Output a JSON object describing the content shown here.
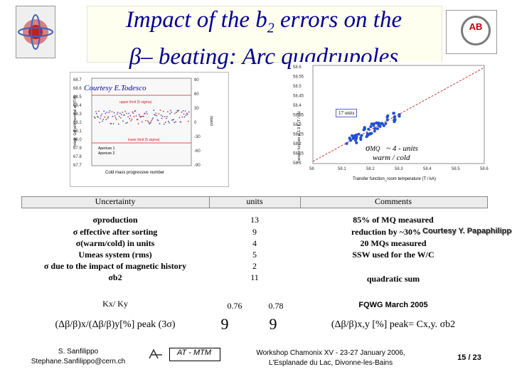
{
  "title": {
    "line1_prefix": "Impact of the b",
    "line1_sub": "2",
    "line1_suffix": " errors on the",
    "line2": "β– beating: Arc quadrupoles"
  },
  "left_chart": {
    "courtesy": "Courtesy E.Todesco",
    "y_ticks_left": [
      "68.7",
      "68.6",
      "68.5",
      "68.4",
      "68.3",
      "68.2",
      "68.1",
      "68.0",
      "67.9",
      "67.8",
      "67.7"
    ],
    "y_ticks_right": [
      "90",
      "60",
      "30",
      "0",
      "-30",
      "-60",
      "-90"
    ],
    "ylabel_left": "Integr. Gdl with nominal at I(T/A)",
    "ylabel_right": "(units)",
    "xlabel": "Cold mass progressive number",
    "upper_limit": "upper limit (5 sigma)",
    "lower_limit": "lower limit (5 sigma)",
    "legend": [
      "Aperture 1",
      "Aperture 2"
    ]
  },
  "right_chart": {
    "y_ticks": [
      "58.6",
      "58.55",
      "58.5",
      "58.45",
      "58.4",
      "58.35",
      "58.3",
      "58.25",
      "58.2",
      "58.15",
      "58.1"
    ],
    "x_ticks": [
      "58",
      "58.1",
      "58.2",
      "58.3",
      "58.4",
      "58.5",
      "58.6"
    ],
    "ylabel": "Transfer function at 1.9 K (T / kA)",
    "xlabel": "Transfer function_room temperature (T / kA)",
    "legend": "17 units",
    "sigma_label": "σ",
    "sigma_sub": "MQ",
    "sigma_sub2": "warm / cold",
    "sigma_value": "~ 4 - units"
  },
  "table": {
    "headers": [
      "Uncertainty",
      "units",
      "Comments"
    ],
    "rows": [
      {
        "label": "σproduction",
        "value": "13",
        "comment": "85% of MQ measured"
      },
      {
        "label": "σ effective after sorting",
        "value": "9",
        "comment": "reduction by ~30%"
      },
      {
        "label": "σ(warm/cold) in units",
        "value": "4",
        "comment": "20 MQs measured"
      },
      {
        "label": "Umeas system (rms)",
        "value": "5",
        "comment": "SSW used for the W/C"
      },
      {
        "label": "σ due to the impact of magnetic history",
        "value": "2",
        "comment": ""
      },
      {
        "label": "σb2",
        "value": "11",
        "comment": "quadratic sum"
      }
    ],
    "courtesy": "Courtesy Y. Papaphilippou",
    "kx_label": "Kx/ Ky",
    "kx_values": [
      "0.76",
      "0.78"
    ],
    "kx_comment": "FQWG March 2005",
    "beat_label": "(Δβ/β)x/(Δβ/β)y[%] peak (3σ)",
    "beat_values": [
      "9",
      "9"
    ],
    "beat_comment": "(Δβ/β)x,y [%] peak= Cx,y. σb2"
  },
  "footer": {
    "author": "S. Sanfilippo",
    "email": "Stephane.Sanfilippo@cern.ch",
    "group": "AT - MTM",
    "workshop": "Workshop Chamonix XV - 23-27 January 2006,",
    "venue": "L'Esplanade du Lac, Divonne-les-Bains",
    "page": "15 / 23"
  },
  "colors": {
    "title": "#000099",
    "logo_text": "#c00000",
    "scatter_points": "#1f4fd6",
    "trend_line": "#d02020"
  }
}
